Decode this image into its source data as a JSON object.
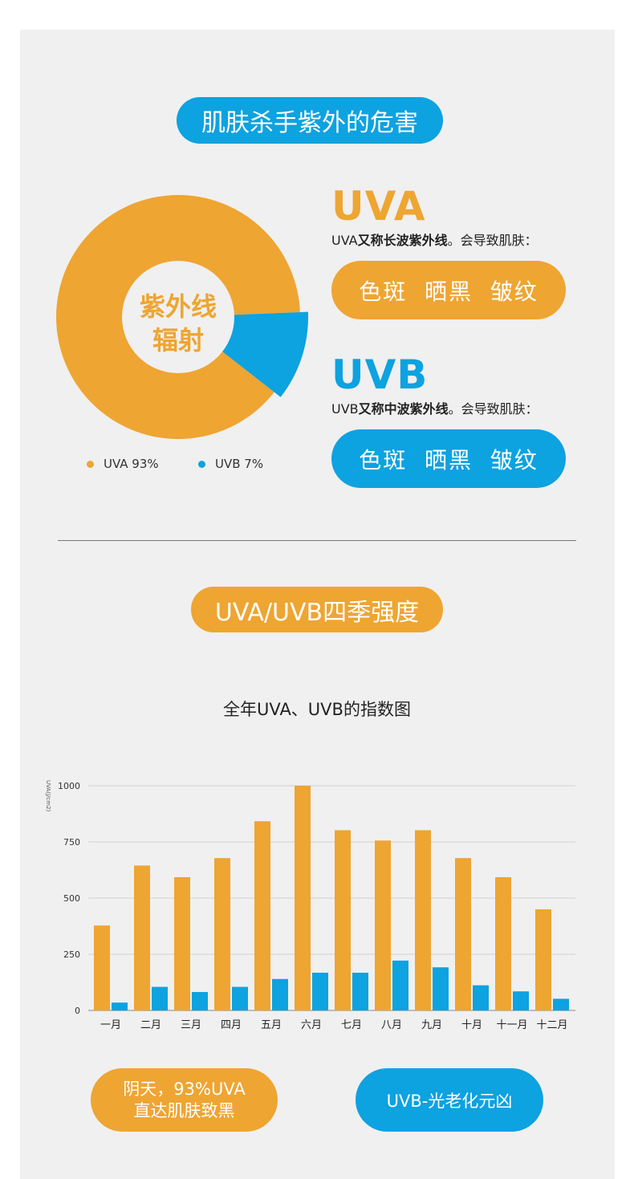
{
  "section1": {
    "title": "肌肤杀手紫外的危害",
    "pie_center_line1": "紫外线",
    "pie_center_line2": "辐射",
    "uva": {
      "heading": "UVA",
      "desc_prefix": "UVA",
      "desc_bold": "又称长波紫外线",
      "desc_suffix": "。会导致肌肤：",
      "effects": "色斑  晒黑  皱纹"
    },
    "uvb": {
      "heading": "UVB",
      "desc_prefix": "UVB",
      "desc_bold": "又称中波紫外线",
      "desc_suffix": "。会导致肌肤：",
      "effects": "色斑  晒黑  皱纹"
    },
    "legend": {
      "uva": "UVA 93%",
      "uvb": "UVB 7%"
    }
  },
  "section2": {
    "title": "UVA/UVB四季强度",
    "chart_title": "全年UVA、UVB的指数图"
  },
  "bottom": {
    "left_line1": "阴天，93%UVA",
    "left_line2": "直达肌肤致黑",
    "right": "UVB-光老化元凶"
  },
  "colors": {
    "uva": "#eea532",
    "uvb": "#0da2e0"
  },
  "chart_data": [
    {
      "type": "pie",
      "categories": [
        "UVA",
        "UVB"
      ],
      "values": [
        93,
        7
      ],
      "labels": [
        "UVA 93%",
        "UVB 7%"
      ]
    },
    {
      "type": "bar",
      "title": "全年UVA、UVB的指数图",
      "ylabel": "UVA(J/cm2)",
      "ylim": [
        0,
        1000
      ],
      "yticks": [
        0,
        250,
        500,
        750,
        1000
      ],
      "grid": true,
      "categories": [
        "一月",
        "二月",
        "三月",
        "四月",
        "五月",
        "六月",
        "七月",
        "八月",
        "九月",
        "十月",
        "十一月",
        "十二月"
      ],
      "series": [
        {
          "name": "UVA",
          "values": [
            378,
            645,
            593,
            678,
            842,
            1000,
            802,
            756,
            802,
            678,
            593,
            450
          ]
        },
        {
          "name": "UVB",
          "values": [
            35,
            105,
            82,
            105,
            140,
            168,
            168,
            222,
            192,
            112,
            85,
            52
          ]
        }
      ]
    }
  ]
}
